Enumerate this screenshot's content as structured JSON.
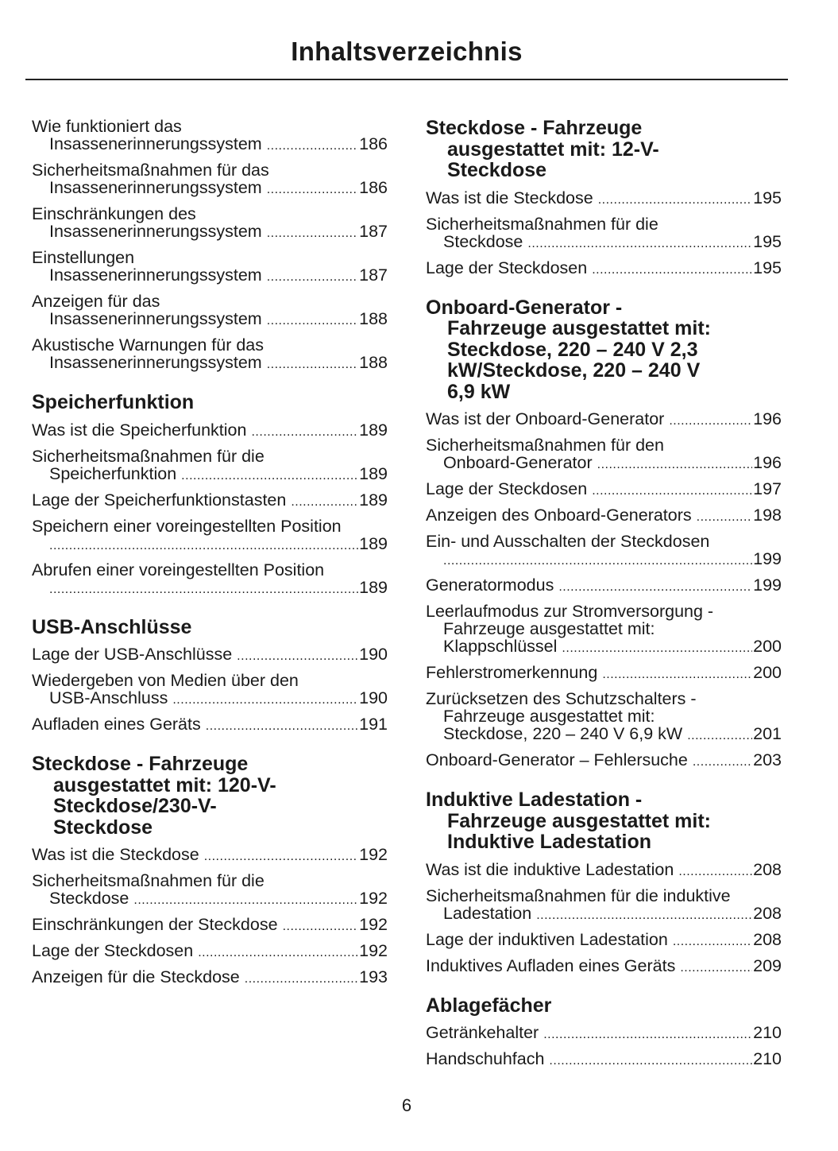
{
  "title": "Inhaltsverzeichnis",
  "page_number": "6",
  "columns": [
    {
      "sections": [
        {
          "heading": [],
          "entries": [
            {
              "lines": [
                "Wie funktioniert das",
                "Insassenerinnerungssystem"
              ],
              "page": "186"
            },
            {
              "lines": [
                "Sicherheitsmaßnahmen für das",
                "Insassenerinnerungssystem"
              ],
              "page": "186"
            },
            {
              "lines": [
                "Einschränkungen des",
                "Insassenerinnerungssystem"
              ],
              "page": "187"
            },
            {
              "lines": [
                "Einstellungen",
                "Insassenerinnerungssystem"
              ],
              "page": "187"
            },
            {
              "lines": [
                "Anzeigen für das",
                "Insassenerinnerungssystem"
              ],
              "page": "188"
            },
            {
              "lines": [
                "Akustische Warnungen für das",
                "Insassenerinnerungssystem"
              ],
              "page": "188"
            }
          ]
        },
        {
          "heading": [
            "Speicherfunktion"
          ],
          "entries": [
            {
              "lines": [
                "Was ist die Speicherfunktion"
              ],
              "page": "189"
            },
            {
              "lines": [
                "Sicherheitsmaßnahmen für die",
                "Speicherfunktion"
              ],
              "page": "189"
            },
            {
              "lines": [
                "Lage der Speicherfunktionstasten"
              ],
              "page": "189"
            },
            {
              "lines": [
                "Speichern einer voreingestellten Position",
                ""
              ],
              "page": "189"
            },
            {
              "lines": [
                "Abrufen einer voreingestellten Position",
                ""
              ],
              "page": "189"
            }
          ]
        },
        {
          "heading": [
            "USB-Anschlüsse"
          ],
          "entries": [
            {
              "lines": [
                "Lage der USB-Anschlüsse"
              ],
              "page": "190"
            },
            {
              "lines": [
                "Wiedergeben von Medien über den",
                "USB-Anschluss"
              ],
              "page": "190"
            },
            {
              "lines": [
                "Aufladen eines Geräts"
              ],
              "page": "191"
            }
          ]
        },
        {
          "heading": [
            "Steckdose - Fahrzeuge",
            "ausgestattet mit: 120-V-",
            "Steckdose/230-V-",
            "Steckdose"
          ],
          "entries": [
            {
              "lines": [
                "Was ist die Steckdose"
              ],
              "page": "192"
            },
            {
              "lines": [
                "Sicherheitsmaßnahmen für die",
                "Steckdose"
              ],
              "page": "192"
            },
            {
              "lines": [
                "Einschränkungen der Steckdose"
              ],
              "page": "192"
            },
            {
              "lines": [
                "Lage der Steckdosen"
              ],
              "page": "192"
            },
            {
              "lines": [
                "Anzeigen für die Steckdose"
              ],
              "page": "193"
            }
          ]
        }
      ]
    },
    {
      "sections": [
        {
          "heading": [
            "Steckdose - Fahrzeuge",
            "ausgestattet mit: 12-V-",
            "Steckdose"
          ],
          "entries": [
            {
              "lines": [
                "Was ist die Steckdose"
              ],
              "page": "195"
            },
            {
              "lines": [
                "Sicherheitsmaßnahmen für die",
                "Steckdose"
              ],
              "page": "195"
            },
            {
              "lines": [
                "Lage der Steckdosen"
              ],
              "page": "195"
            }
          ]
        },
        {
          "heading": [
            "Onboard-Generator -",
            "Fahrzeuge ausgestattet mit:",
            "Steckdose, 220 – 240 V 2,3",
            "kW/Steckdose, 220 – 240 V",
            "6,9 kW"
          ],
          "entries": [
            {
              "lines": [
                "Was ist der Onboard-Generator"
              ],
              "page": "196"
            },
            {
              "lines": [
                "Sicherheitsmaßnahmen für den",
                "Onboard-Generator"
              ],
              "page": "196"
            },
            {
              "lines": [
                "Lage der Steckdosen"
              ],
              "page": "197"
            },
            {
              "lines": [
                "Anzeigen des Onboard-Generators"
              ],
              "page": "198"
            },
            {
              "lines": [
                "Ein- und Ausschalten der Steckdosen",
                ""
              ],
              "page": "199"
            },
            {
              "lines": [
                "Generatormodus"
              ],
              "page": "199"
            },
            {
              "lines": [
                "Leerlaufmodus zur Stromversorgung -",
                "Fahrzeuge ausgestattet mit:",
                "Klappschlüssel"
              ],
              "page": "200"
            },
            {
              "lines": [
                "Fehlerstromerkennung"
              ],
              "page": "200"
            },
            {
              "lines": [
                "Zurücksetzen des Schutzschalters -",
                "Fahrzeuge ausgestattet mit:",
                "Steckdose, 220 – 240 V 6,9 kW"
              ],
              "page": "201"
            },
            {
              "lines": [
                "Onboard-Generator – Fehlersuche"
              ],
              "page": "203"
            }
          ]
        },
        {
          "heading": [
            "Induktive Ladestation -",
            "Fahrzeuge ausgestattet mit:",
            "Induktive Ladestation"
          ],
          "entries": [
            {
              "lines": [
                "Was ist die induktive Ladestation"
              ],
              "page": "208"
            },
            {
              "lines": [
                "Sicherheitsmaßnahmen für die induktive",
                "Ladestation"
              ],
              "page": "208"
            },
            {
              "lines": [
                "Lage der induktiven Ladestation"
              ],
              "page": "208"
            },
            {
              "lines": [
                "Induktives Aufladen eines Geräts"
              ],
              "page": "209"
            }
          ]
        },
        {
          "heading": [
            "Ablagefächer"
          ],
          "entries": [
            {
              "lines": [
                "Getränkehalter"
              ],
              "page": "210"
            },
            {
              "lines": [
                "Handschuhfach"
              ],
              "page": "210"
            }
          ]
        }
      ]
    }
  ]
}
